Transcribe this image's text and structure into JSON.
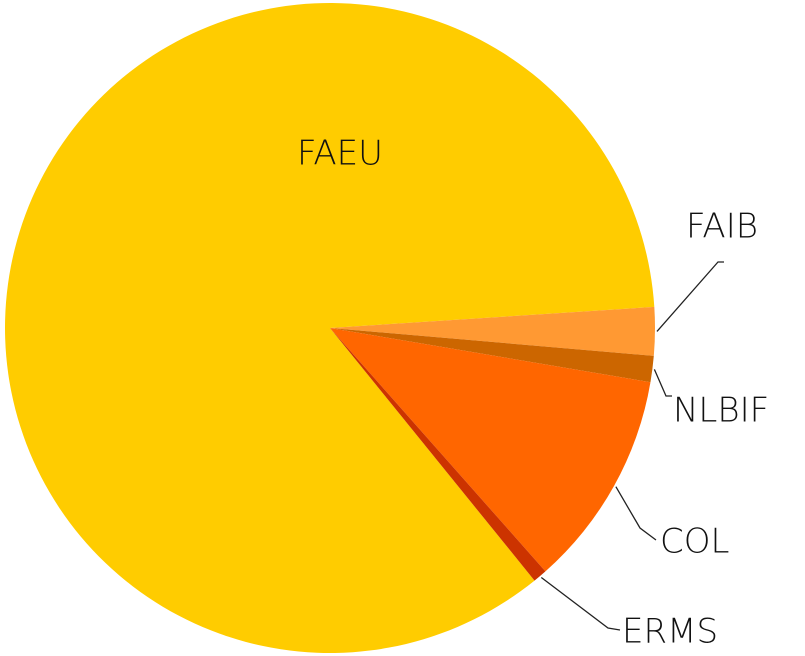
{
  "chart_data": {
    "type": "pie",
    "categories": [
      "FAEU",
      "FAIB",
      "NLBIF",
      "COL",
      "ERMS"
    ],
    "values": [
      84.8,
      2.4,
      1.3,
      10.8,
      0.7
    ],
    "colors": [
      "#ffcc00",
      "#ff9933",
      "#cc6600",
      "#ff6600",
      "#cc3300"
    ]
  }
}
